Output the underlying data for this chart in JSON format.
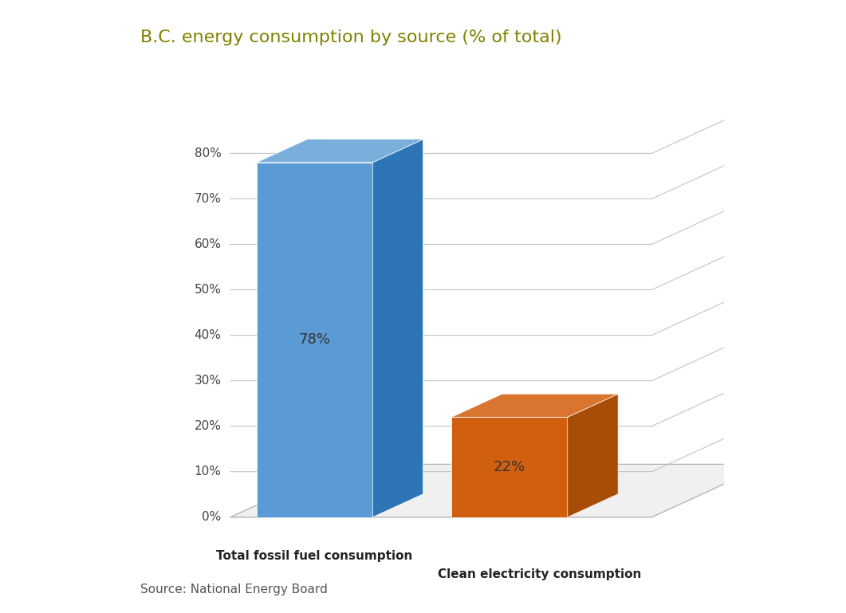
{
  "title": "B.C. energy consumption by source (% of total)",
  "title_color": "#808000",
  "title_fontsize": 16,
  "categories": [
    "Total fossil fuel consumption",
    "Clean electricity consumption"
  ],
  "values": [
    78,
    22
  ],
  "bar_front_colors": [
    "#5B9BD5",
    "#D06010"
  ],
  "bar_top_colors": [
    "#7AAFDC",
    "#DA7530"
  ],
  "bar_side_colors": [
    "#2E75B6",
    "#A84D08"
  ],
  "labels": [
    "78%",
    "22%"
  ],
  "label_color": "#333333",
  "label_fontsize": 13,
  "yticks": [
    0,
    10,
    20,
    30,
    40,
    50,
    60,
    70,
    80
  ],
  "source_text": "Source: National Energy Board",
  "source_fontsize": 11,
  "source_color": "#555555",
  "background_color": "#FFFFFF",
  "grid_color": "#BBBBBB",
  "tick_fontsize": 11,
  "tick_color": "#444444",
  "cat_label_fontsize": 11,
  "cat_label_color": "#222222"
}
